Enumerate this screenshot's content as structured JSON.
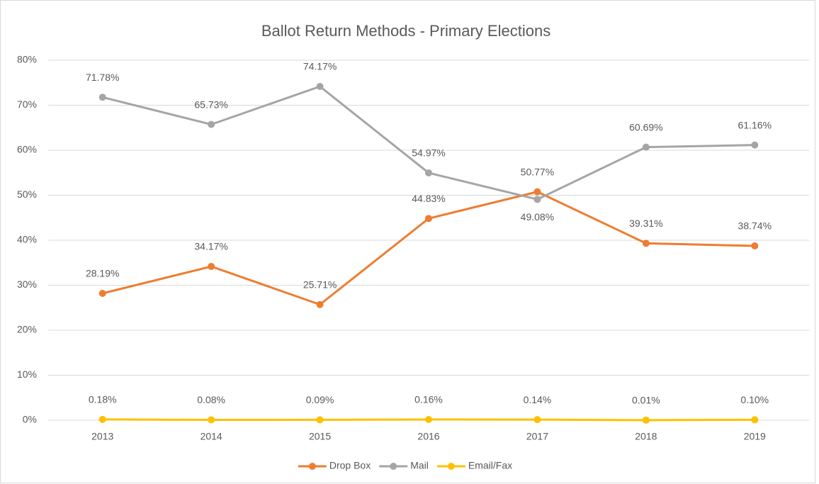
{
  "chart_data": {
    "type": "line",
    "title": "Ballot Return Methods - Primary Elections",
    "categories": [
      "2013",
      "2014",
      "2015",
      "2016",
      "2017",
      "2018",
      "2019"
    ],
    "series": [
      {
        "name": "Drop Box",
        "color": "#ED7D31",
        "values": [
          28.19,
          34.17,
          25.71,
          44.83,
          50.77,
          39.31,
          38.74
        ],
        "value_labels": [
          "28.19%",
          "34.17%",
          "25.71%",
          "44.83%",
          "50.77%",
          "39.31%",
          "38.74%"
        ]
      },
      {
        "name": "Mail",
        "color": "#A5A5A5",
        "values": [
          71.78,
          65.73,
          74.17,
          54.97,
          49.08,
          60.69,
          61.16
        ],
        "value_labels": [
          "71.78%",
          "65.73%",
          "74.17%",
          "54.97%",
          "49.08%",
          "60.69%",
          "61.16%"
        ]
      },
      {
        "name": "Email/Fax",
        "color": "#FFC000",
        "values": [
          0.18,
          0.08,
          0.09,
          0.16,
          0.14,
          0.01,
          0.1
        ],
        "value_labels": [
          "0.18%",
          "0.08%",
          "0.09%",
          "0.16%",
          "0.14%",
          "0.01%",
          "0.10%"
        ]
      }
    ],
    "ylim": [
      0,
      80
    ],
    "yticks": [
      {
        "value": 0,
        "label": "0%"
      },
      {
        "value": 10,
        "label": "10%"
      },
      {
        "value": 20,
        "label": "20%"
      },
      {
        "value": 30,
        "label": "30%"
      },
      {
        "value": 40,
        "label": "40%"
      },
      {
        "value": 50,
        "label": "50%"
      },
      {
        "value": 60,
        "label": "60%"
      },
      {
        "value": 70,
        "label": "70%"
      },
      {
        "value": 80,
        "label": "80%"
      }
    ],
    "grid": true,
    "legend": "bottom"
  }
}
